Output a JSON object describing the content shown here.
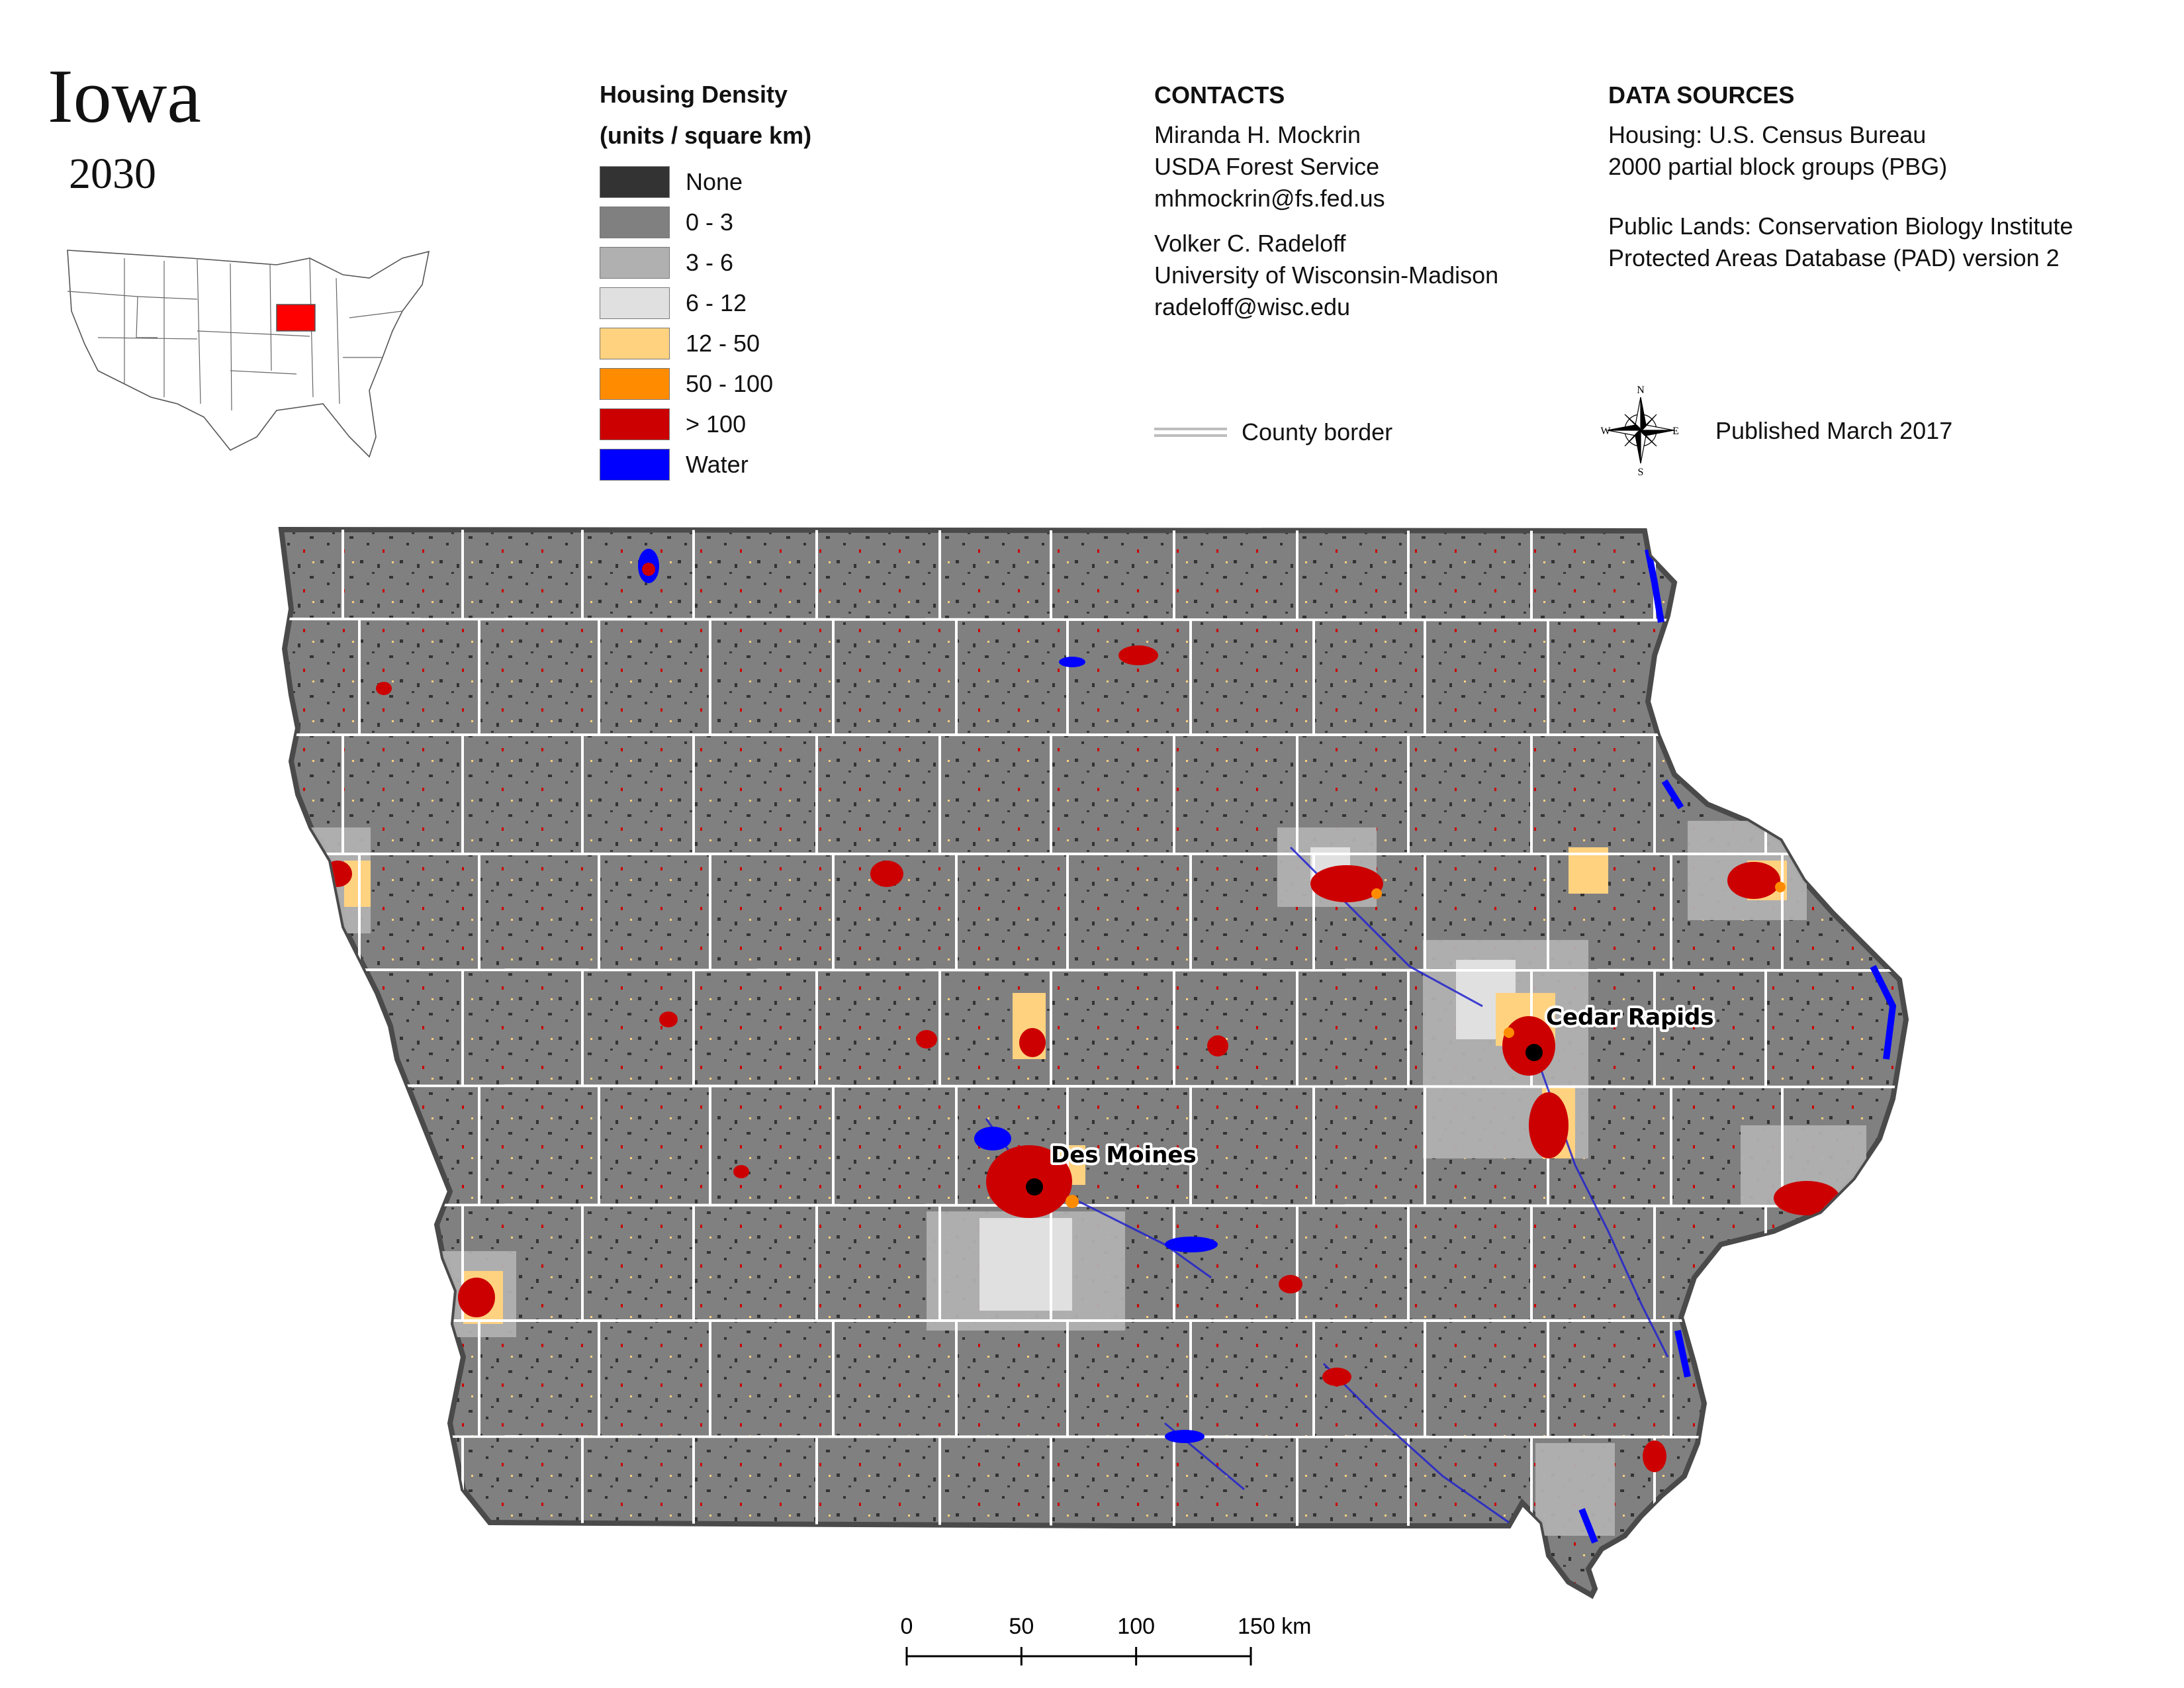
{
  "title": "Iowa",
  "year": "2030",
  "legend": {
    "title_line1": "Housing Density",
    "title_line2": "(units / square km)",
    "items": [
      {
        "label": "None",
        "color": "#333333"
      },
      {
        "label": "0 - 3",
        "color": "#808080"
      },
      {
        "label": "3 - 6",
        "color": "#b0b0b0"
      },
      {
        "label": "6 - 12",
        "color": "#e0e0e0"
      },
      {
        "label": "12 - 50",
        "color": "#ffd280"
      },
      {
        "label": "50 - 100",
        "color": "#ff8c00"
      },
      {
        "label": "> 100",
        "color": "#cc0000"
      },
      {
        "label": "Water",
        "color": "#0000ff"
      }
    ]
  },
  "contacts": {
    "heading": "CONTACTS",
    "person1": {
      "name": "Miranda H. Mockrin",
      "org": "USDA Forest Service",
      "email": "mhmockrin@fs.fed.us"
    },
    "person2": {
      "name": "Volker C. Radeloff",
      "org": "University of Wisconsin-Madison",
      "email": "radeloff@wisc.edu"
    }
  },
  "data_sources": {
    "heading": "DATA SOURCES",
    "housing_line1": "Housing: U.S. Census Bureau",
    "housing_line2": "2000 partial block groups (PBG)",
    "public_line1": "Public Lands: Conservation Biology Institute",
    "public_line2": "Protected Areas Database (PAD) version 2"
  },
  "county_border_label": "County border",
  "published": "Published March 2017",
  "compass": {
    "n": "N",
    "s": "S",
    "e": "E",
    "w": "W"
  },
  "cities": {
    "cedar_rapids": "Cedar Rapids",
    "des_moines": "Des Moines"
  },
  "scale_bar": {
    "ticks": [
      "0",
      "50",
      "100",
      "150 km"
    ]
  },
  "colors": {
    "county_line": "#ffffff",
    "state_fill": "#808080",
    "highlight_state": "#ff0000"
  }
}
